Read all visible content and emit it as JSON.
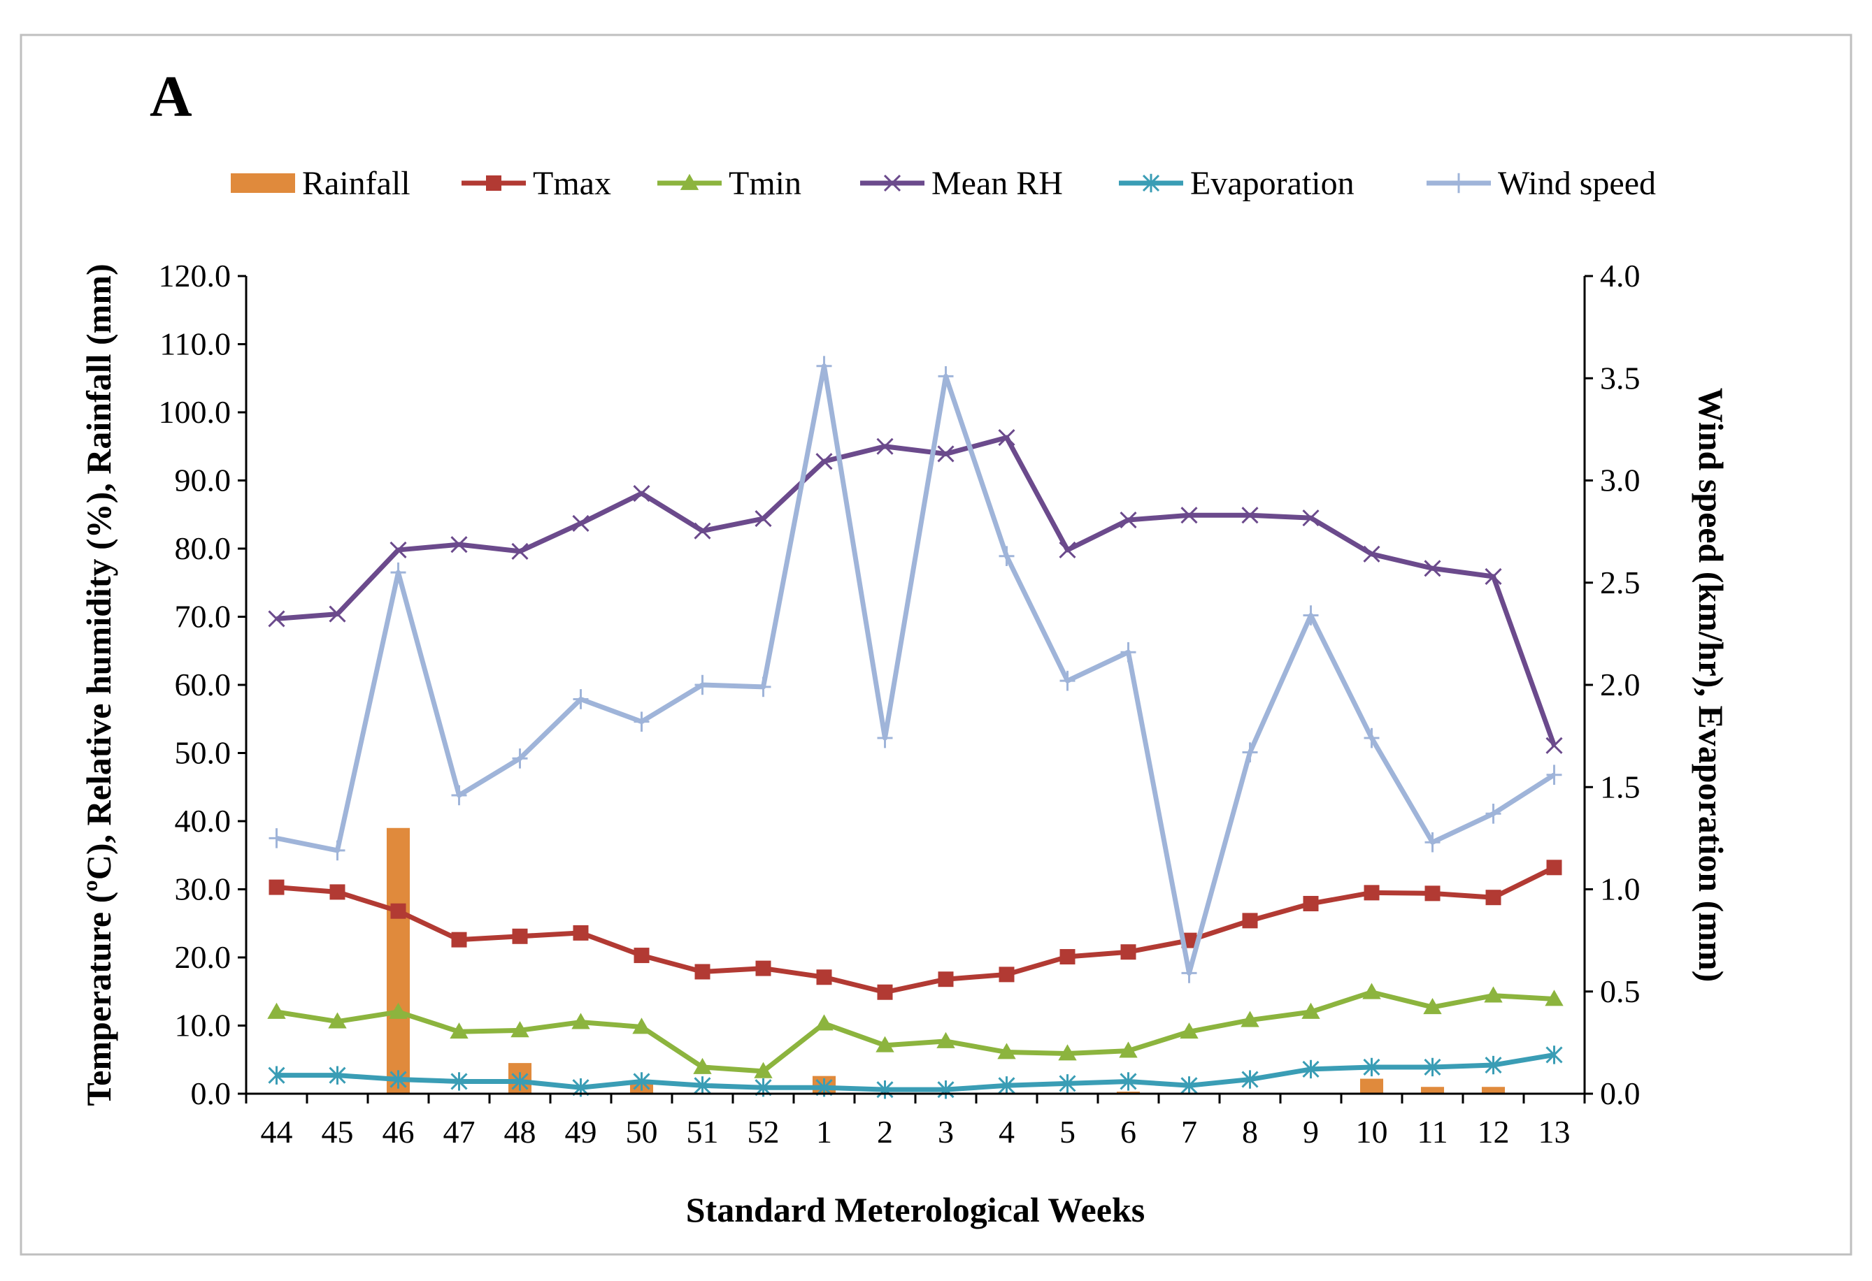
{
  "chart_data": {
    "type": "bar+line",
    "panel_label": "A",
    "xlabel": "Standard Meterological Weeks",
    "ylabel_left": "Temperature (ºC), Relative humidity (%), Rainfall (mm)",
    "ylabel_right": "Wind speed (km/hr), Evaporation (mm)",
    "ylim_left": [
      0,
      120
    ],
    "yticks_left": [
      "0.0",
      "10.0",
      "20.0",
      "30.0",
      "40.0",
      "50.0",
      "60.0",
      "70.0",
      "80.0",
      "90.0",
      "100.0",
      "110.0",
      "120.0"
    ],
    "ylim_right": [
      0,
      4
    ],
    "yticks_right": [
      "0.0",
      "0.5",
      "1.0",
      "1.5",
      "2.0",
      "2.5",
      "3.0",
      "3.5",
      "4.0"
    ],
    "grid": false,
    "legend_position": "top",
    "categories": [
      "44",
      "45",
      "46",
      "47",
      "48",
      "49",
      "50",
      "51",
      "52",
      "1",
      "2",
      "3",
      "4",
      "5",
      "6",
      "7",
      "8",
      "9",
      "10",
      "11",
      "12",
      "13"
    ],
    "series": [
      {
        "name": "Rainfall",
        "type": "bar",
        "axis": "left",
        "color": "#E08A3C",
        "values": [
          0,
          0,
          39.0,
          0,
          4.5,
          0,
          1.5,
          0,
          0,
          2.6,
          0,
          0,
          0,
          0,
          0.3,
          0,
          0,
          0,
          2.2,
          1.0,
          1.0,
          0
        ]
      },
      {
        "name": "Tmax",
        "type": "line",
        "axis": "left",
        "color": "#B23A33",
        "marker": "square",
        "values": [
          30.3,
          29.6,
          26.8,
          22.6,
          23.1,
          23.6,
          20.3,
          17.9,
          18.4,
          17.1,
          14.9,
          16.8,
          17.5,
          20.1,
          20.8,
          22.5,
          25.4,
          27.9,
          29.5,
          29.4,
          28.8,
          33.2
        ]
      },
      {
        "name": "Tmin",
        "type": "line",
        "axis": "left",
        "color": "#8CB43E",
        "marker": "triangle",
        "values": [
          12.0,
          10.6,
          12.0,
          9.1,
          9.3,
          10.5,
          9.8,
          3.9,
          3.3,
          10.3,
          7.1,
          7.7,
          6.1,
          5.9,
          6.3,
          9.1,
          10.8,
          12.0,
          14.9,
          12.7,
          14.4,
          13.9
        ]
      },
      {
        "name": "Mean RH",
        "type": "line",
        "axis": "left",
        "color": "#6B4A8C",
        "marker": "x",
        "values": [
          69.7,
          70.4,
          79.8,
          80.6,
          79.6,
          83.7,
          88.1,
          82.6,
          84.4,
          92.8,
          95.0,
          93.9,
          96.3,
          79.8,
          84.2,
          84.9,
          84.9,
          84.5,
          79.2,
          77.1,
          75.9,
          51.1
        ]
      },
      {
        "name": "Evaporation",
        "type": "line",
        "axis": "right",
        "color": "#3A9DB5",
        "marker": "star",
        "values": [
          0.09,
          0.09,
          0.07,
          0.06,
          0.06,
          0.03,
          0.06,
          0.04,
          0.03,
          0.03,
          0.02,
          0.02,
          0.04,
          0.05,
          0.06,
          0.04,
          0.07,
          0.12,
          0.13,
          0.13,
          0.14,
          0.19
        ]
      },
      {
        "name": "Wind speed",
        "type": "line",
        "axis": "right",
        "color": "#9FB4D9",
        "marker": "plus",
        "values": [
          1.25,
          1.19,
          2.55,
          1.46,
          1.64,
          1.93,
          1.82,
          2.0,
          1.99,
          3.56,
          1.74,
          3.51,
          2.63,
          2.02,
          2.16,
          0.59,
          1.67,
          2.34,
          1.74,
          1.23,
          1.37,
          1.56
        ]
      }
    ]
  }
}
